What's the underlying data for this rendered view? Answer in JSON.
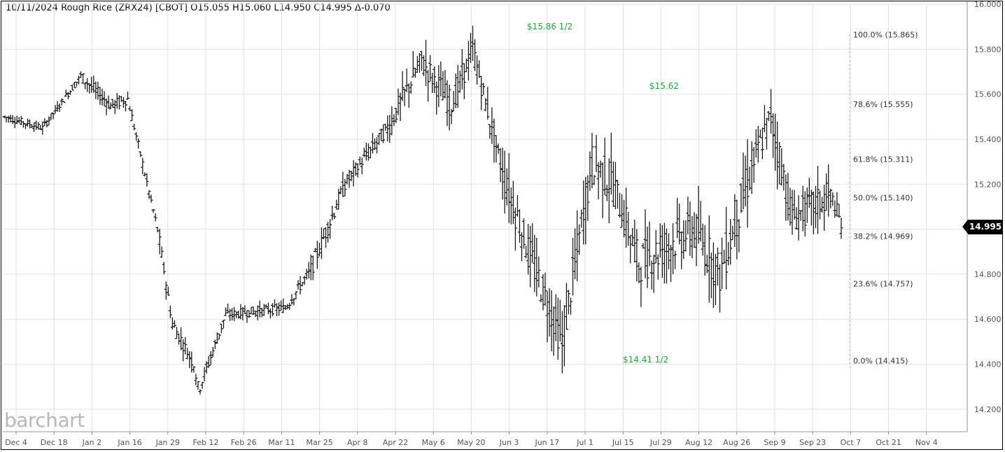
{
  "header": {
    "date": "10/11/2024",
    "name": "Rough Rice (ZRX24)",
    "exchange": "[CBOT]",
    "open": "O15.055",
    "high": "H15.060",
    "low": "L14.950",
    "close": "C14.995",
    "change": "Δ-0.070"
  },
  "watermark": "barchart",
  "last_price_label": "14.995",
  "colors": {
    "bars": "#1a1a1a",
    "grid": "#e2e2e2",
    "annotation": "#22a83a",
    "axis_text": "#555555"
  },
  "chart_data": {
    "type": "ohlc",
    "ylim": [
      14.1,
      16.0
    ],
    "yticks": [
      "16.000",
      "15.800",
      "15.600",
      "15.400",
      "15.200",
      "15.000",
      "14.800",
      "14.600",
      "14.400",
      "14.200"
    ],
    "x_labels": [
      "Dec 4",
      "Dec 18",
      "Jan 2",
      "Jan 16",
      "Jan 29",
      "Feb 12",
      "Feb 26",
      "Mar 11",
      "Mar 25",
      "Apr 8",
      "Apr 22",
      "May 6",
      "May 20",
      "Jun 3",
      "Jun 17",
      "Jul 1",
      "Jul 15",
      "Jul 29",
      "Aug 12",
      "Aug 26",
      "Sep 9",
      "Sep 23",
      "Oct 7",
      "Oct 21",
      "Nov 4"
    ],
    "price_annotations": [
      {
        "text": "$15.86 1/2",
        "index": 0
      },
      {
        "text": "$15.62",
        "index": 1
      },
      {
        "text": "$14.41 1/2",
        "index": 2
      }
    ],
    "fibonacci": [
      {
        "label": "100.0% (15.865)",
        "value": 15.865
      },
      {
        "label": "78.6% (15.555)",
        "value": 15.555
      },
      {
        "label": "61.8% (15.311)",
        "value": 15.311
      },
      {
        "label": "50.0% (15.140)",
        "value": 15.14
      },
      {
        "label": "38.2% (14.969)",
        "value": 14.969
      },
      {
        "label": "23.6% (14.757)",
        "value": 14.757
      },
      {
        "label": "0.0% (14.415)",
        "value": 14.415
      }
    ],
    "segments": [
      {
        "start": 15.5,
        "end": 15.45,
        "amp": 0.03,
        "n": 18
      },
      {
        "start": 15.45,
        "end": 15.68,
        "amp": 0.03,
        "n": 18
      },
      {
        "start": 15.68,
        "end": 15.55,
        "amp": 0.05,
        "n": 14
      },
      {
        "start": 15.55,
        "end": 15.58,
        "amp": 0.05,
        "n": 8
      },
      {
        "start": 15.58,
        "end": 15.0,
        "amp": 0.04,
        "n": 14
      },
      {
        "start": 15.0,
        "end": 14.58,
        "amp": 0.06,
        "n": 7
      },
      {
        "start": 14.58,
        "end": 14.4,
        "amp": 0.06,
        "n": 10
      },
      {
        "start": 14.4,
        "end": 14.25,
        "amp": 0.05,
        "n": 3
      },
      {
        "start": 14.3,
        "end": 14.62,
        "amp": 0.05,
        "n": 12
      },
      {
        "start": 14.62,
        "end": 14.65,
        "amp": 0.04,
        "n": 28
      },
      {
        "start": 14.65,
        "end": 14.82,
        "amp": 0.05,
        "n": 12
      },
      {
        "start": 14.82,
        "end": 15.2,
        "amp": 0.07,
        "n": 16
      },
      {
        "start": 15.2,
        "end": 15.45,
        "amp": 0.06,
        "n": 20
      },
      {
        "start": 15.45,
        "end": 15.75,
        "amp": 0.1,
        "n": 16
      },
      {
        "start": 15.75,
        "end": 15.55,
        "amp": 0.12,
        "n": 14
      },
      {
        "start": 15.55,
        "end": 15.8,
        "amp": 0.1,
        "n": 10
      },
      {
        "start": 15.8,
        "end": 15.25,
        "amp": 0.1,
        "n": 14
      },
      {
        "start": 15.25,
        "end": 14.85,
        "amp": 0.15,
        "n": 14
      },
      {
        "start": 14.85,
        "end": 14.5,
        "amp": 0.16,
        "n": 14
      },
      {
        "start": 14.5,
        "end": 15.3,
        "amp": 0.18,
        "n": 14
      },
      {
        "start": 15.3,
        "end": 15.2,
        "amp": 0.18,
        "n": 10
      },
      {
        "start": 15.2,
        "end": 14.85,
        "amp": 0.16,
        "n": 12
      },
      {
        "start": 14.85,
        "end": 15.0,
        "amp": 0.18,
        "n": 26
      },
      {
        "start": 15.0,
        "end": 14.8,
        "amp": 0.18,
        "n": 12
      },
      {
        "start": 14.8,
        "end": 15.3,
        "amp": 0.18,
        "n": 16
      },
      {
        "start": 15.3,
        "end": 15.5,
        "amp": 0.14,
        "n": 8
      },
      {
        "start": 15.5,
        "end": 15.05,
        "amp": 0.16,
        "n": 10
      },
      {
        "start": 15.05,
        "end": 15.15,
        "amp": 0.14,
        "n": 18
      },
      {
        "start": 15.15,
        "end": 14.995,
        "amp": 0.08,
        "n": 6
      }
    ]
  }
}
